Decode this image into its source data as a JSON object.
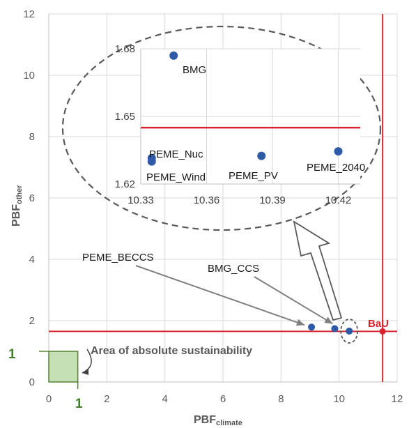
{
  "chart_data": [
    {
      "type": "scatter",
      "title": "",
      "xlabel": "PBF",
      "xlabel_subscript": "climate",
      "ylabel": "PBF",
      "ylabel_subscript": "other",
      "xlim": [
        0,
        12
      ],
      "ylim": [
        0,
        12
      ],
      "x_ticks": [
        0,
        2,
        4,
        6,
        8,
        10,
        12
      ],
      "y_ticks": [
        0,
        2,
        4,
        6,
        8,
        10,
        12
      ],
      "grid": true,
      "points": [
        {
          "x": 9.05,
          "y": 1.79
        },
        {
          "x": 9.85,
          "y": 1.74
        },
        {
          "x": 10.35,
          "y": 1.66
        }
      ],
      "bau": {
        "label": "BaU",
        "x": 11.5,
        "y": 1.65
      },
      "annotations": [
        "PEME_BECCS",
        "BMG_CCS"
      ],
      "sustainability_area": {
        "label": "Area of absolute sustainability",
        "x_range": [
          0,
          1
        ],
        "y_range": [
          0,
          1
        ],
        "x_marker": "1",
        "y_marker": "1"
      }
    },
    {
      "type": "scatter",
      "title": "",
      "xlim": [
        10.33,
        10.43
      ],
      "ylim": [
        1.62,
        1.68
      ],
      "x_ticks": [
        "10.33",
        "10.36",
        "10.39",
        "10.42"
      ],
      "y_ticks": [
        "1.62",
        "1.65",
        "1.68"
      ],
      "grid": true,
      "reference_line_y": 1.645,
      "points": [
        {
          "label": "BMG",
          "x": 10.345,
          "y": 1.677
        },
        {
          "label": "PEME_Nuc",
          "x": 10.335,
          "y": 1.6315
        },
        {
          "label": "PEME_Wind",
          "x": 10.335,
          "y": 1.63
        },
        {
          "label": "PEME_PV",
          "x": 10.385,
          "y": 1.6325
        },
        {
          "label": "PEME_2040",
          "x": 10.42,
          "y": 1.6345
        }
      ]
    }
  ]
}
